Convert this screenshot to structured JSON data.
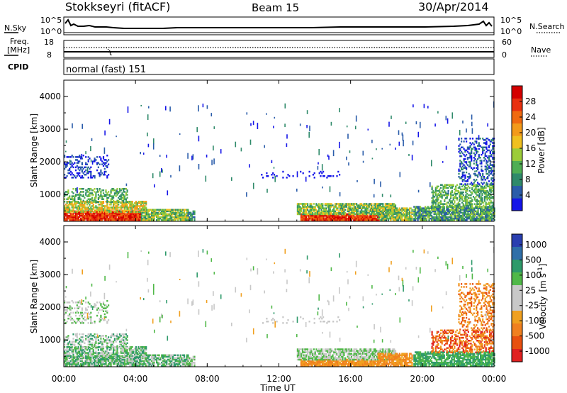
{
  "header": {
    "station": "Stokkseyri (fitACF)",
    "beam": "Beam 15",
    "date": "30/Apr/2014"
  },
  "top_panels": {
    "nsky_label": "N.Sky",
    "nsky_ticks": [
      "10^5",
      "10^0"
    ],
    "nsearch_label": "N.Search",
    "nsearch_ticks": [
      "10^5",
      "10^0"
    ],
    "freq_label_1": "Freq.",
    "freq_label_2": "[MHz]",
    "freq_ticks": [
      "18",
      "8"
    ],
    "nave_label": "Nave",
    "nave_ticks": [
      "60",
      "0"
    ],
    "cpid_label": "CPID",
    "cpid_value": "normal (fast) 151"
  },
  "chart_data": [
    {
      "type": "heatmap",
      "name": "power",
      "ylabel": "Slant Range [km]",
      "xlabel": "Time UT",
      "x_ticks": [
        "00:00",
        "04:00",
        "08:00",
        "12:00",
        "16:00",
        "20:00",
        "00:00"
      ],
      "xlim_hours": [
        0,
        24
      ],
      "y_ticks": [
        "1000",
        "2000",
        "3000",
        "4000"
      ],
      "ylim_km": [
        180,
        4500
      ],
      "colorbar": {
        "label": "Power [dB]",
        "ticks": [
          "4",
          "8",
          "12",
          "16",
          "20",
          "24",
          "28"
        ],
        "colors": [
          "#1515e8",
          "#2a5caa",
          "#2f8a6a",
          "#4fae54",
          "#9ccc3a",
          "#f0c020",
          "#f39a1a",
          "#f06a10",
          "#e83010",
          "#d40000"
        ]
      }
    },
    {
      "type": "heatmap",
      "name": "velocity",
      "ylabel": "Slant Range [km]",
      "xlabel": "Time UT",
      "x_ticks": [
        "00:00",
        "04:00",
        "08:00",
        "12:00",
        "16:00",
        "20:00",
        "00:00"
      ],
      "y_ticks": [
        "1000",
        "2000",
        "3000",
        "4000"
      ],
      "colorbar": {
        "label": "Velocity",
        "unit": "[m s",
        "unit_exp": "-1",
        "unit_end": "]",
        "ticks": [
          "1000",
          "500",
          "100",
          "25",
          "-25",
          "-100",
          "-500",
          "-1000"
        ],
        "colors": [
          "#2a3fb0",
          "#2f6fa8",
          "#2e9a6a",
          "#50b848",
          "#c8c8c8",
          "#c8c8c8",
          "#f0a020",
          "#f08020",
          "#e85010",
          "#e02020"
        ]
      }
    }
  ]
}
